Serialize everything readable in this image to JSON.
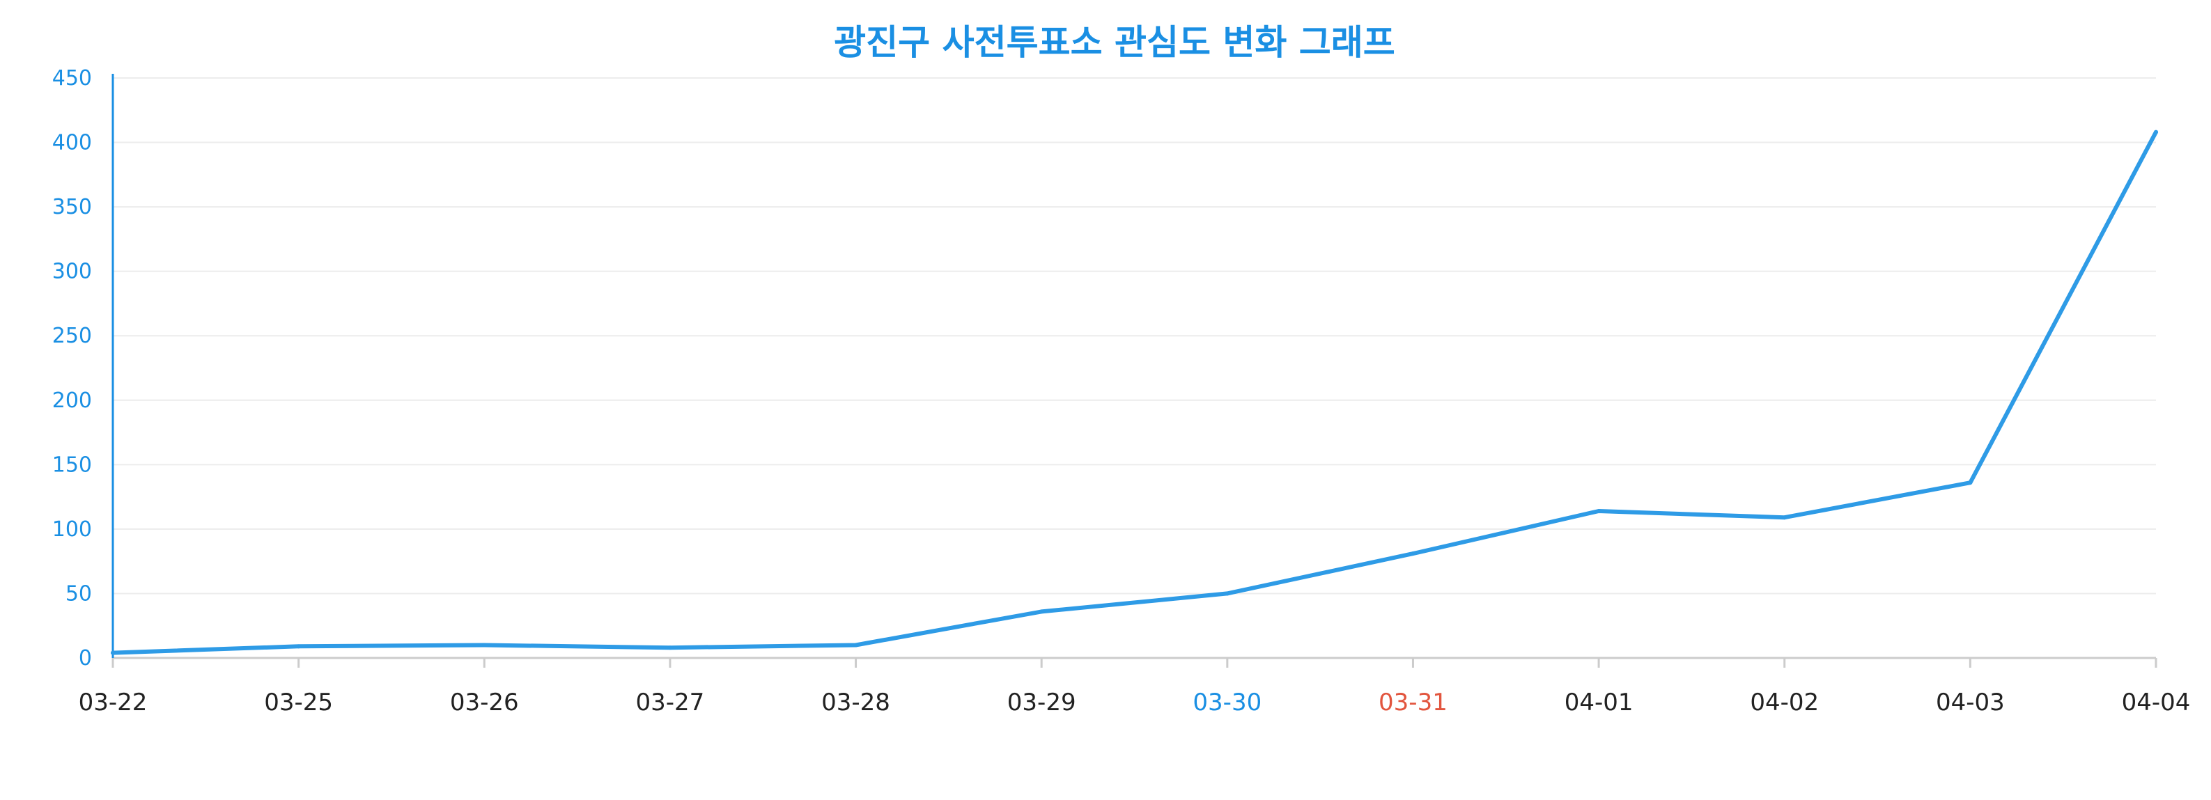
{
  "chart_data": {
    "type": "line",
    "title": "광진구 사전투표소 관심도 변화 그래프",
    "xlabel": "",
    "ylabel": "",
    "categories": [
      "03-22",
      "03-25",
      "03-26",
      "03-27",
      "03-28",
      "03-29",
      "03-30",
      "03-31",
      "04-01",
      "04-02",
      "04-03",
      "04-04"
    ],
    "series": [
      {
        "values": [
          4,
          9,
          10,
          8,
          10,
          36,
          50,
          81,
          114,
          109,
          136,
          408
        ]
      }
    ],
    "ylim": [
      0,
      450
    ],
    "y_ticks": [
      0,
      50,
      100,
      150,
      200,
      250,
      300,
      350,
      400,
      450
    ],
    "grid": true,
    "legend": "none",
    "highlighted_tick_colors": {
      "03-30": "#1a8fe3",
      "03-31": "#e2553e"
    }
  },
  "colors": {
    "title": "#1a8fe3",
    "line": "#2e9be6",
    "axis": "#1a8fe3",
    "y_tick_label": "#1a8fe3",
    "x_tick_label": "#222222",
    "grid": "#ececec",
    "x_axis_line": "#cccccc"
  }
}
